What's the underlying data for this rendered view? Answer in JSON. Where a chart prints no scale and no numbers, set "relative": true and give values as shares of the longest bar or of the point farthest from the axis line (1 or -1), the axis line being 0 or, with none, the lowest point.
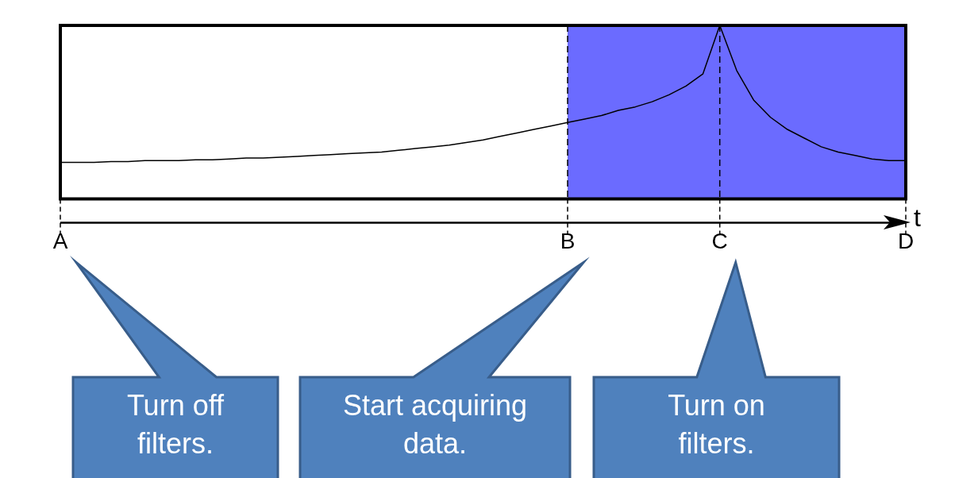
{
  "chart_data": {
    "type": "line",
    "relative": true,
    "xlabel": "t",
    "categories": [
      "A",
      null,
      null,
      null,
      null,
      null,
      null,
      null,
      null,
      null,
      null,
      null,
      null,
      null,
      null,
      null,
      null,
      null,
      null,
      null,
      null,
      null,
      null,
      null,
      null,
      null,
      null,
      null,
      null,
      null,
      "B",
      null,
      null,
      null,
      null,
      null,
      null,
      null,
      null,
      "C",
      null,
      null,
      null,
      null,
      null,
      null,
      null,
      null,
      null,
      null,
      "D"
    ],
    "series": [
      {
        "color": "#000000",
        "values": [
          0.21,
          0.21,
          0.21,
          0.215,
          0.215,
          0.22,
          0.22,
          0.22,
          0.225,
          0.225,
          0.23,
          0.235,
          0.235,
          0.24,
          0.245,
          0.25,
          0.255,
          0.26,
          0.265,
          0.27,
          0.28,
          0.29,
          0.3,
          0.31,
          0.325,
          0.34,
          0.36,
          0.38,
          0.4,
          0.42,
          0.44,
          0.46,
          0.48,
          0.51,
          0.53,
          0.56,
          0.6,
          0.65,
          0.72,
          1,
          0.74,
          0.57,
          0.47,
          0.4,
          0.35,
          0.3,
          0.27,
          0.25,
          0.23,
          0.22,
          0.22
        ]
      }
    ],
    "bands": [
      {
        "axis": "x",
        "from": "B",
        "to": "D",
        "color": "#6b6bff"
      }
    ],
    "ref_lines": [
      {
        "axis": "x",
        "value": "B",
        "line_style": "dashed",
        "color": "#000000"
      },
      {
        "axis": "x",
        "value": "C",
        "line_style": "dashed",
        "color": "#000000"
      }
    ],
    "marker": "none",
    "line_style": "solid",
    "grid": false,
    "legend": false,
    "annotations": [
      "Turn off filters.",
      "Start acquiring data.",
      "Turn on filters."
    ]
  }
}
